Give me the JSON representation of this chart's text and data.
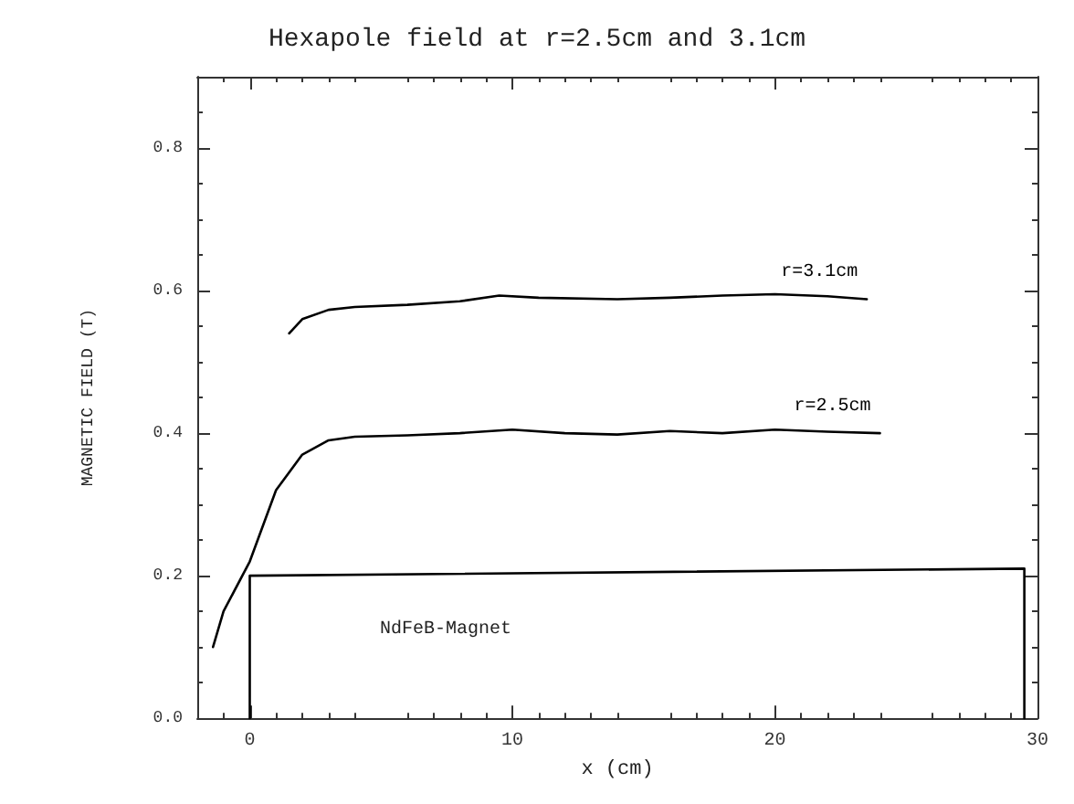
{
  "chart_data": {
    "type": "line",
    "title": "Hexapole field at r=2.5cm and 3.1cm",
    "xlabel": "x (cm)",
    "ylabel": "MAGNETIC FIELD (T)",
    "xlim": [
      -2,
      30
    ],
    "xticks": [
      0,
      10,
      20,
      30
    ],
    "ylim": [
      0,
      0.9
    ],
    "yticks": [
      {
        "value": 0,
        "label": "0.0"
      },
      {
        "value": 0.2,
        "label": "0.2"
      },
      {
        "value": 0.4,
        "label": "0.4"
      },
      {
        "value": 0.6,
        "label": "0.6"
      },
      {
        "value": 0.8,
        "label": "0.8"
      }
    ],
    "grid": false,
    "legend": false,
    "marker": "none",
    "line_style": "solid",
    "series": [
      {
        "name": "r=3.1cm",
        "color": "#000000",
        "x": [
          1.5,
          2,
          3,
          4,
          6,
          8,
          9.5,
          11,
          14,
          16,
          18,
          20,
          22,
          23.5
        ],
        "values": [
          0.54,
          0.56,
          0.573,
          0.577,
          0.58,
          0.585,
          0.593,
          0.59,
          0.588,
          0.59,
          0.593,
          0.595,
          0.592,
          0.588
        ]
      },
      {
        "name": "r=2.5cm",
        "color": "#000000",
        "x": [
          -1.4,
          -1,
          0,
          1,
          2,
          3,
          4,
          6,
          8,
          10,
          12,
          14,
          16,
          18,
          20,
          22,
          24
        ],
        "values": [
          0.1,
          0.15,
          0.22,
          0.32,
          0.37,
          0.39,
          0.395,
          0.397,
          0.4,
          0.405,
          0.4,
          0.398,
          0.403,
          0.4,
          0.405,
          0.402,
          0.4
        ]
      },
      {
        "color": "#000000",
        "x": [
          0,
          0,
          29.5,
          29.5
        ],
        "values": [
          0,
          0.2,
          0.21,
          0
        ]
      }
    ],
    "annotations": [
      "NdFeB-Magnet"
    ]
  }
}
